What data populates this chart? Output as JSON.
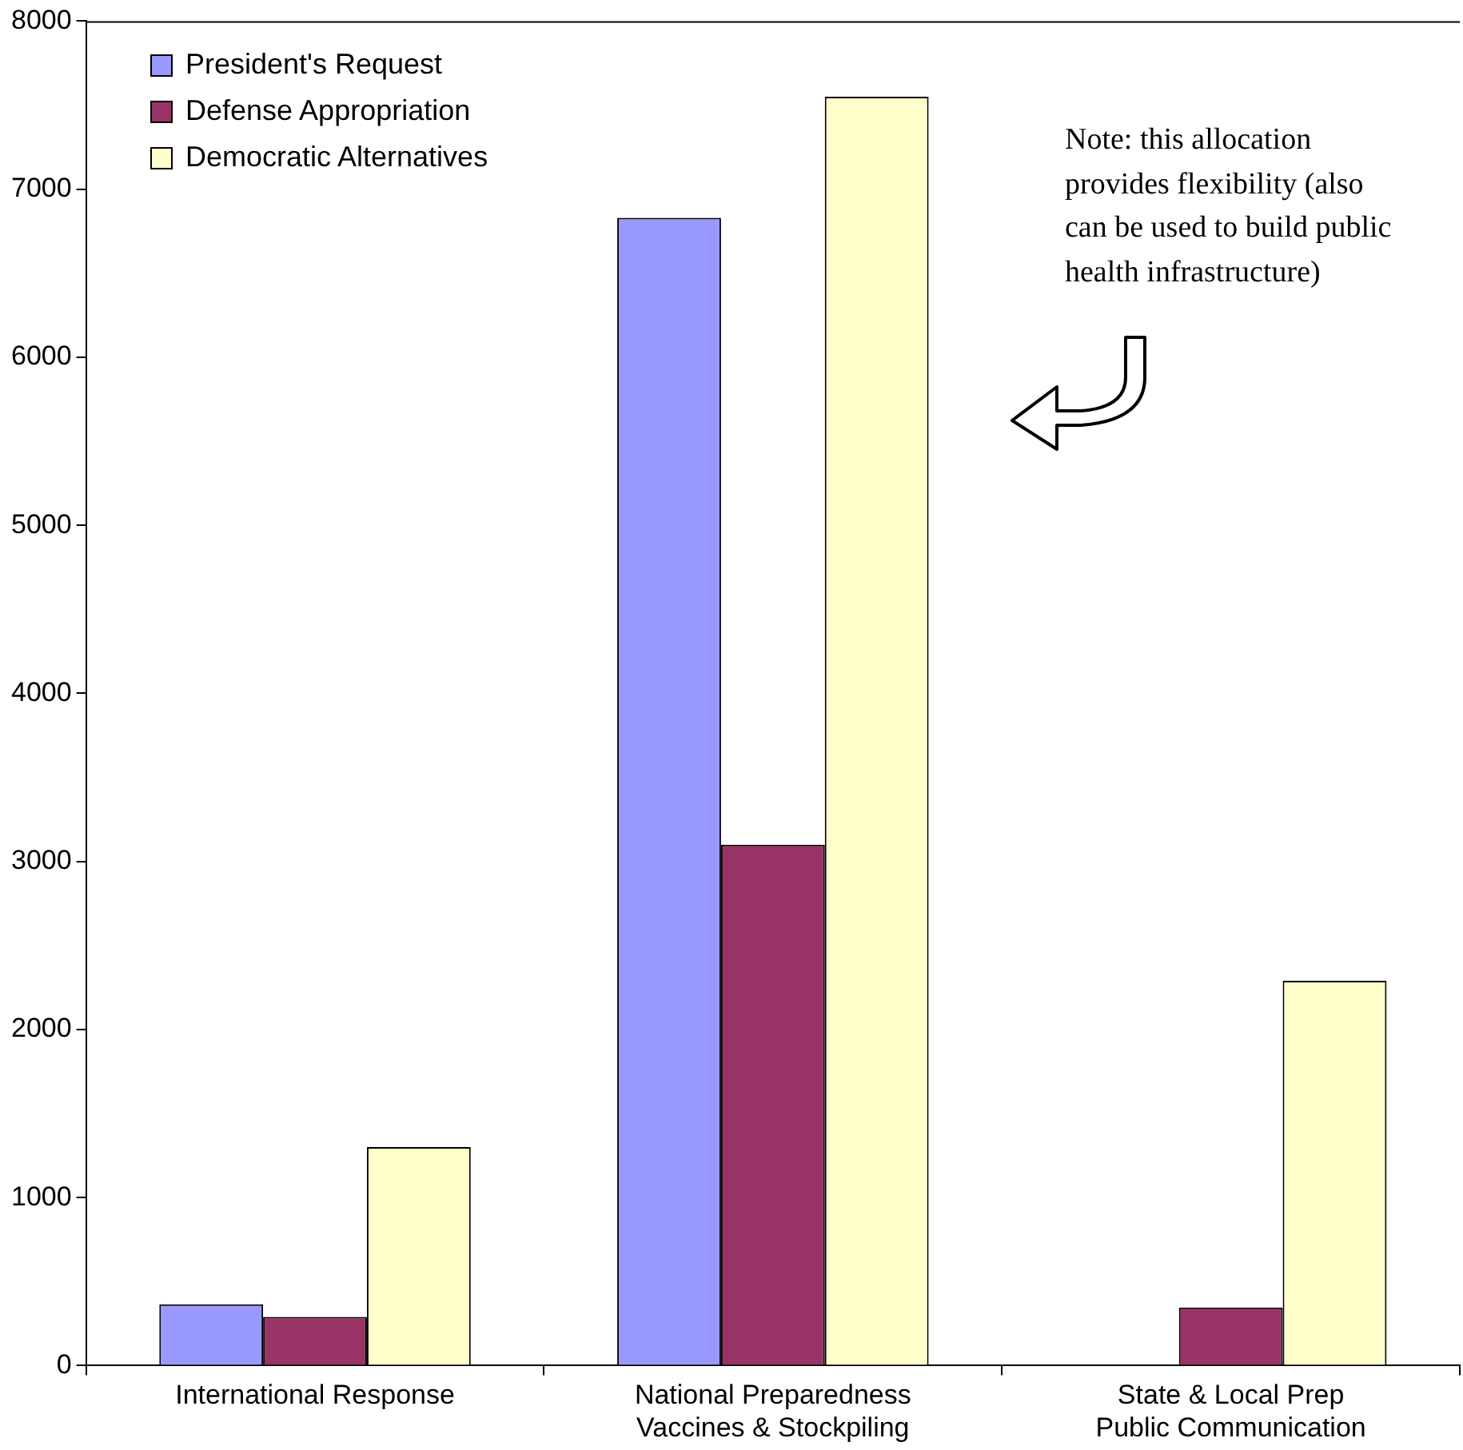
{
  "chart_data": {
    "type": "bar",
    "categories": [
      "International Response",
      "National Preparedness\nVaccines & Stockpiling",
      "State & Local Prep\nPublic Communication"
    ],
    "series": [
      {
        "name": "President's Request",
        "color": "#9999ff",
        "values": [
          365,
          6830,
          0
        ]
      },
      {
        "name": "Defense Appropriation",
        "color": "#993366",
        "values": [
          290,
          3100,
          345
        ]
      },
      {
        "name": "Democratic Alternatives",
        "color": "#ffffcc",
        "values": [
          1300,
          7550,
          2290
        ]
      }
    ],
    "ylim": [
      0,
      8000
    ],
    "yticks": [
      0,
      1000,
      2000,
      3000,
      4000,
      5000,
      6000,
      7000,
      8000
    ],
    "grid": false,
    "legend": "top left",
    "annotations": [
      "Note: this allocation provides flexibility (also can be used to build public health infrastructure)"
    ]
  }
}
